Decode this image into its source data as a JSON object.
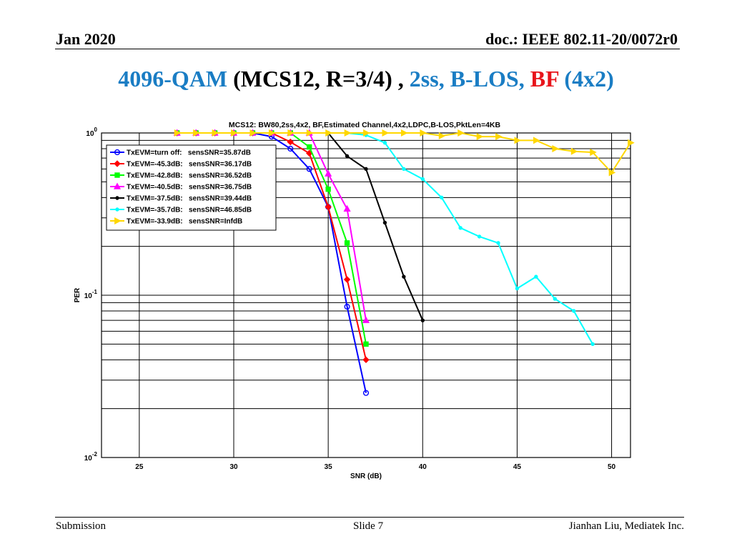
{
  "header": {
    "date": "Jan 2020",
    "doc": "doc.: IEEE 802.11-20/0072r0"
  },
  "title": {
    "part1": "4096-QAM",
    "part2": " (MCS12, R=3/4) , ",
    "part3": "2ss, B-LOS, ",
    "part4": "BF",
    "part5": " (4x2)"
  },
  "footer": {
    "left": "Submission",
    "center": "Slide 7",
    "right": "Jianhan Liu, Mediatek Inc."
  },
  "chart_data": {
    "type": "line",
    "title": "MCS12: BW80,2ss,4x2, BF,Estimated Channel,4x2,LDPC,B-LOS,PktLen=4KB",
    "xlabel": "SNR (dB)",
    "ylabel": "PER",
    "xlim": [
      23,
      51
    ],
    "ylim": [
      0.01,
      1
    ],
    "yscale": "log",
    "xticks": [
      25,
      30,
      35,
      40,
      45,
      50
    ],
    "yticks": [
      {
        "base": "10",
        "exp": "0"
      },
      {
        "base": "10",
        "exp": "-1"
      },
      {
        "base": "10",
        "exp": "-2"
      }
    ],
    "grid": true,
    "legend_position": "top-left",
    "series": [
      {
        "name": "TxEVM=turn off:   sensSNR=35.87dB",
        "color": "#0000ff",
        "marker": "circle",
        "x": [
          27,
          28,
          29,
          30,
          31,
          32,
          33,
          34,
          35,
          36,
          37
        ],
        "y": [
          1,
          1,
          1,
          1,
          1,
          0.95,
          0.8,
          0.6,
          0.35,
          0.085,
          0.025
        ]
      },
      {
        "name": "TxEVM=-45.3dB:   sensSNR=36.17dB",
        "color": "#ff0000",
        "marker": "diamond",
        "x": [
          27,
          28,
          29,
          30,
          31,
          32,
          33,
          34,
          35,
          36,
          37
        ],
        "y": [
          1,
          1,
          1,
          1,
          1,
          1,
          0.88,
          0.75,
          0.35,
          0.125,
          0.04
        ]
      },
      {
        "name": "TxEVM=-42.8dB:   sensSNR=36.52dB",
        "color": "#00ff00",
        "marker": "square",
        "x": [
          27,
          28,
          29,
          30,
          31,
          32,
          33,
          34,
          35,
          36,
          37
        ],
        "y": [
          1,
          1,
          1,
          1,
          1,
          1,
          1,
          0.82,
          0.45,
          0.21,
          0.05
        ]
      },
      {
        "name": "TxEVM=-40.5dB:   sensSNR=36.75dB",
        "color": "#ff00ff",
        "marker": "triangle-up",
        "x": [
          27,
          28,
          29,
          30,
          31,
          32,
          33,
          34,
          35,
          36,
          37
        ],
        "y": [
          1,
          1,
          1,
          1,
          1,
          1,
          1,
          1,
          0.56,
          0.34,
          0.07
        ]
      },
      {
        "name": "TxEVM=-37.5dB:   sensSNR=39.44dB",
        "color": "#000000",
        "marker": "dot",
        "x": [
          27,
          28,
          29,
          30,
          31,
          32,
          33,
          34,
          35,
          36,
          37,
          38,
          39,
          40
        ],
        "y": [
          1,
          1,
          1,
          1,
          1,
          1,
          1,
          1,
          1,
          0.72,
          0.6,
          0.28,
          0.13,
          0.07
        ]
      },
      {
        "name": "TxEVM=-35.7dB:   sensSNR=46.85dB",
        "color": "#00ffff",
        "marker": "dot",
        "x": [
          27,
          28,
          29,
          30,
          31,
          32,
          33,
          34,
          35,
          36,
          37,
          38,
          39,
          40,
          41,
          42,
          43,
          44,
          45,
          46,
          47,
          48,
          49
        ],
        "y": [
          1,
          1,
          1,
          1,
          1,
          1,
          1,
          1,
          1,
          1,
          0.97,
          0.87,
          0.6,
          0.52,
          0.4,
          0.26,
          0.23,
          0.21,
          0.11,
          0.13,
          0.095,
          0.08,
          0.05
        ]
      },
      {
        "name": "TxEVM=-33.9dB:   sensSNR=InfdB",
        "color": "#ffd700",
        "marker": "triangle-right",
        "x": [
          27,
          28,
          29,
          30,
          31,
          32,
          33,
          34,
          35,
          36,
          37,
          38,
          39,
          40,
          41,
          42,
          43,
          44,
          45,
          46,
          47,
          48,
          49,
          50,
          51
        ],
        "y": [
          1,
          1,
          1,
          1,
          1,
          1,
          1,
          1,
          1,
          1,
          1,
          1,
          1,
          1,
          0.96,
          1,
          0.95,
          0.95,
          0.9,
          0.9,
          0.8,
          0.77,
          0.76,
          0.57,
          0.87
        ]
      }
    ]
  }
}
